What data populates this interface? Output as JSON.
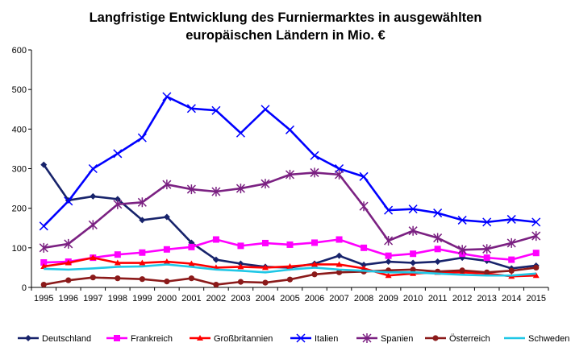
{
  "chart_data": {
    "type": "line",
    "title": "Langfristige Entwicklung des Furniermarktes in ausgewählten",
    "subtitle": "europäischen Ländern in Mio. €",
    "xlabel": "",
    "ylabel": "",
    "ylim": [
      0,
      600
    ],
    "yticks": [
      "0",
      "100",
      "200",
      "300",
      "400",
      "500",
      "600"
    ],
    "categories": [
      "1995",
      "1996",
      "1997",
      "1998",
      "1999",
      "2000",
      "2001",
      "2002",
      "2003",
      "2004",
      "2005",
      "2006",
      "2007",
      "2008",
      "2009",
      "2010",
      "2011",
      "2012",
      "2013",
      "2014",
      "2015"
    ],
    "grid": false,
    "legend_position": "bottom",
    "series": [
      {
        "name": "Deutschland",
        "color": "#17236b",
        "marker": "diamond",
        "values": [
          310,
          220,
          230,
          223,
          170,
          178,
          113,
          70,
          60,
          52,
          50,
          60,
          80,
          57,
          65,
          62,
          65,
          75,
          67,
          48,
          55
        ]
      },
      {
        "name": "Frankreich",
        "color": "#ff00ff",
        "marker": "square",
        "values": [
          63,
          65,
          75,
          83,
          88,
          96,
          102,
          121,
          105,
          112,
          108,
          113,
          121,
          100,
          80,
          85,
          97,
          85,
          75,
          70,
          87
        ]
      },
      {
        "name": "Großbritannien",
        "color": "#ff0000",
        "marker": "triangle",
        "values": [
          53,
          62,
          75,
          62,
          62,
          65,
          60,
          50,
          52,
          50,
          53,
          58,
          58,
          48,
          30,
          35,
          38,
          38,
          35,
          28,
          30
        ]
      },
      {
        "name": "Italien",
        "color": "#0000ff",
        "marker": "x",
        "values": [
          155,
          218,
          300,
          338,
          378,
          482,
          452,
          447,
          390,
          450,
          398,
          333,
          300,
          280,
          195,
          198,
          188,
          170,
          165,
          172,
          165
        ]
      },
      {
        "name": "Spanien",
        "color": "#7b2182",
        "marker": "star",
        "values": [
          100,
          110,
          158,
          210,
          215,
          260,
          248,
          242,
          250,
          262,
          285,
          290,
          285,
          205,
          118,
          143,
          125,
          95,
          97,
          112,
          130
        ]
      },
      {
        "name": "Österreich",
        "color": "#8b1a1a",
        "marker": "circle",
        "values": [
          7,
          18,
          25,
          23,
          21,
          15,
          23,
          7,
          14,
          12,
          20,
          33,
          38,
          40,
          43,
          45,
          40,
          43,
          38,
          42,
          50
        ]
      },
      {
        "name": "Schweden",
        "color": "#1fc7e6",
        "marker": "none",
        "values": [
          47,
          45,
          48,
          52,
          53,
          58,
          52,
          45,
          42,
          38,
          45,
          50,
          45,
          42,
          38,
          38,
          35,
          32,
          30,
          30,
          35
        ]
      }
    ]
  }
}
